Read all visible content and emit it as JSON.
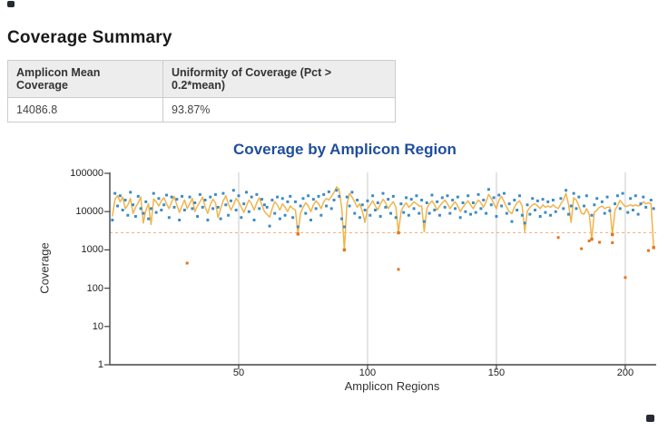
{
  "page": {
    "heading": "Coverage Summary"
  },
  "summary_table": {
    "headers": [
      "Amplicon Mean Coverage",
      "Uniformity of Coverage (Pct > 0.2*mean)"
    ],
    "values": [
      "14086.8",
      "93.87%"
    ]
  },
  "chart_data": {
    "type": "line+scatter",
    "title": "Coverage by Amplicon Region",
    "xlabel": "Amplicon Regions",
    "ylabel": "Coverage",
    "x_scale": "linear",
    "y_scale": "log",
    "xlim": [
      0,
      212
    ],
    "ylim": [
      1,
      100000
    ],
    "x_ticks": [
      50,
      100,
      150,
      200
    ],
    "y_ticks": [
      1,
      10,
      100,
      1000,
      10000,
      100000
    ],
    "grid": "vertical-only",
    "gridline_color": "#d9d9d9",
    "axis_color": "#444444",
    "title_color": "#1f4e9c",
    "threshold": {
      "value": 2817.4,
      "note": "0.2 * mean coverage",
      "color": "#f5a973",
      "style": "dashed"
    },
    "below_threshold_color": "#e2751d",
    "series": [
      {
        "name": "amplicon-mean-coverage-line",
        "type": "line",
        "color": "#f0b44c",
        "x_start": 1,
        "values": [
          7500,
          21000,
          26000,
          18000,
          24000,
          12000,
          15000,
          22000,
          9000,
          13000,
          17000,
          24000,
          5000,
          11000,
          16000,
          4600,
          21500,
          18000,
          14000,
          19000,
          23000,
          16000,
          12000,
          18000,
          25000,
          15000,
          9500,
          14000,
          20000,
          12000,
          16000,
          22000,
          10000,
          14000,
          18000,
          24000,
          13000,
          9000,
          15000,
          21000,
          17000,
          7000,
          12000,
          19000,
          26000,
          16000,
          11000,
          15000,
          22000,
          18000,
          13000,
          9500,
          14000,
          20000,
          16000,
          11000,
          17000,
          23000,
          15000,
          10000,
          8500,
          7200,
          12000,
          18000,
          15000,
          11000,
          16000,
          13000,
          10000,
          14000,
          12000,
          11000,
          2600,
          9000,
          13000,
          17000,
          14000,
          10000,
          15000,
          19000,
          16000,
          12000,
          18000,
          22000,
          20000,
          25000,
          32000,
          44000,
          38000,
          12000,
          1000,
          15000,
          30000,
          24000,
          18000,
          13000,
          16000,
          10000,
          5200,
          12000,
          15000,
          19000,
          14000,
          11000,
          16000,
          21000,
          17000,
          12000,
          15000,
          18000,
          13000,
          2800,
          10000,
          14000,
          17000,
          13000,
          15000,
          18000,
          16000,
          14000,
          14000,
          3000,
          12000,
          16000,
          19000,
          15000,
          11000,
          14000,
          17000,
          20000,
          16000,
          12000,
          15000,
          18000,
          14000,
          10000,
          13000,
          16000,
          19000,
          15000,
          12000,
          16000,
          20000,
          17000,
          13000,
          18000,
          28000,
          22000,
          16000,
          12000,
          20000,
          25000,
          18000,
          13000,
          10000,
          8800,
          13000,
          17000,
          19000,
          14000,
          3000,
          10300,
          12900,
          15000,
          16000,
          14000,
          12000,
          15000,
          13000,
          14000,
          12900,
          15000,
          13000,
          12000,
          16000,
          20000,
          30000,
          15000,
          5200,
          23000,
          20000,
          14000,
          9000,
          8600,
          12000,
          8600,
          1900,
          9700,
          11000,
          13000,
          14000,
          12000,
          13000,
          13000,
          2500,
          11000,
          14000,
          19800,
          16000,
          13500,
          14000,
          15000,
          14000,
          15000,
          14000,
          15000,
          18000,
          16000,
          17000,
          16000,
          1150
        ]
      },
      {
        "name": "amplicon-coverage-points",
        "type": "scatter",
        "color": "#3d8bc4",
        "x_start": 1,
        "values": [
          6000,
          30000,
          14000,
          26000,
          11000,
          20000,
          8000,
          32000,
          15000,
          7500,
          25000,
          12000,
          9000,
          18000,
          6500,
          12000,
          30000,
          9500,
          22000,
          11000,
          15000,
          27000,
          7000,
          24000,
          13000,
          21000,
          6000,
          25000,
          11000,
          450,
          24000,
          12000,
          17000,
          7500,
          28000,
          13000,
          20000,
          6000,
          24000,
          12000,
          28000,
          13000,
          6500,
          30000,
          15000,
          8000,
          19000,
          36000,
          11000,
          26000,
          7000,
          16000,
          32000,
          10000,
          24000,
          6000,
          28000,
          12000,
          21000,
          15000,
          13000,
          4200,
          20000,
          9000,
          24000,
          6500,
          22000,
          8000,
          18000,
          25000,
          7000,
          18000,
          4000,
          14000,
          22000,
          9000,
          26000,
          6000,
          21000,
          12000,
          25000,
          8000,
          28000,
          14000,
          33000,
          12000,
          20000,
          36000,
          25000,
          6500,
          4000,
          24000,
          14000,
          32000,
          9000,
          20000,
          7000,
          15000,
          11000,
          19000,
          8000,
          26000,
          11000,
          17000,
          7500,
          30000,
          13000,
          21000,
          9000,
          25000,
          7000,
          310,
          16000,
          9500,
          23000,
          8000,
          21000,
          12000,
          26000,
          9000,
          20000,
          5500,
          17000,
          9000,
          27000,
          11000,
          18000,
          8000,
          23000,
          13000,
          26000,
          9000,
          20000,
          12000,
          24000,
          7000,
          17000,
          10000,
          26000,
          8500,
          17000,
          9500,
          28000,
          12000,
          20000,
          9000,
          38000,
          15000,
          23000,
          7500,
          27000,
          14000,
          30000,
          9000,
          16000,
          5500,
          20000,
          11000,
          26000,
          8000,
          5000,
          15000,
          8500,
          22000,
          11000,
          19000,
          7500,
          21000,
          9500,
          18000,
          8000,
          20000,
          10000,
          2100,
          22000,
          12000,
          36000,
          8500,
          14000,
          30000,
          12000,
          24000,
          1070,
          14000,
          26000,
          1720,
          8000,
          15000,
          22000,
          1580,
          18000,
          9000,
          24000,
          10500,
          1540,
          16000,
          26000,
          12000,
          30000,
          190,
          9500,
          22000,
          11000,
          26000,
          8500,
          16000,
          24000,
          13000,
          960,
          20000,
          12000
        ]
      }
    ]
  }
}
